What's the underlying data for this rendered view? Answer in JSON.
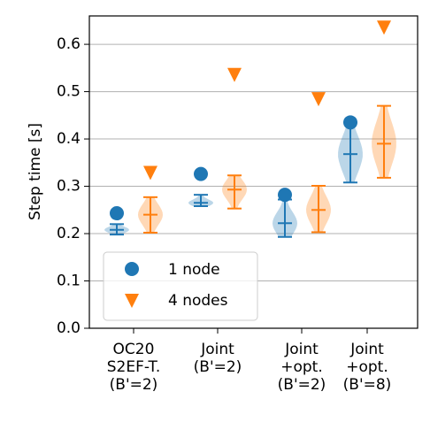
{
  "chart_data": {
    "type": "violin",
    "ylabel": "Step time [s]",
    "ylim": [
      0.0,
      0.66
    ],
    "yticks": [
      "0.0",
      "0.1",
      "0.2",
      "0.3",
      "0.4",
      "0.5",
      "0.6"
    ],
    "ytick_values": [
      0.0,
      0.1,
      0.2,
      0.3,
      0.4,
      0.5,
      0.6
    ],
    "grid": "horizontal",
    "legend_position": "lower-left",
    "categories": [
      [
        "OC20",
        "S2EF-T.",
        "(B'=2)"
      ],
      [
        "Joint",
        "(B'=2)"
      ],
      [
        "Joint",
        "+opt.",
        "(B'=2)"
      ],
      [
        "Joint",
        "+opt.",
        "(B'=8)"
      ]
    ],
    "series": [
      {
        "name": "1 node",
        "color": "#1f77b4",
        "marker": "circle",
        "marker_values": [
          0.243,
          0.326,
          0.282,
          0.435
        ],
        "min": [
          0.198,
          0.258,
          0.193,
          0.308
        ],
        "max": [
          0.22,
          0.282,
          0.272,
          0.435
        ],
        "median": [
          0.208,
          0.265,
          0.222,
          0.368
        ]
      },
      {
        "name": "4 nodes",
        "color": "#ff7f0e",
        "marker": "triangle-down",
        "marker_values": [
          0.33,
          0.537,
          0.486,
          0.637
        ],
        "min": [
          0.202,
          0.253,
          0.203,
          0.318
        ],
        "max": [
          0.277,
          0.323,
          0.301,
          0.47
        ],
        "median": [
          0.24,
          0.293,
          0.25,
          0.39
        ]
      }
    ]
  }
}
